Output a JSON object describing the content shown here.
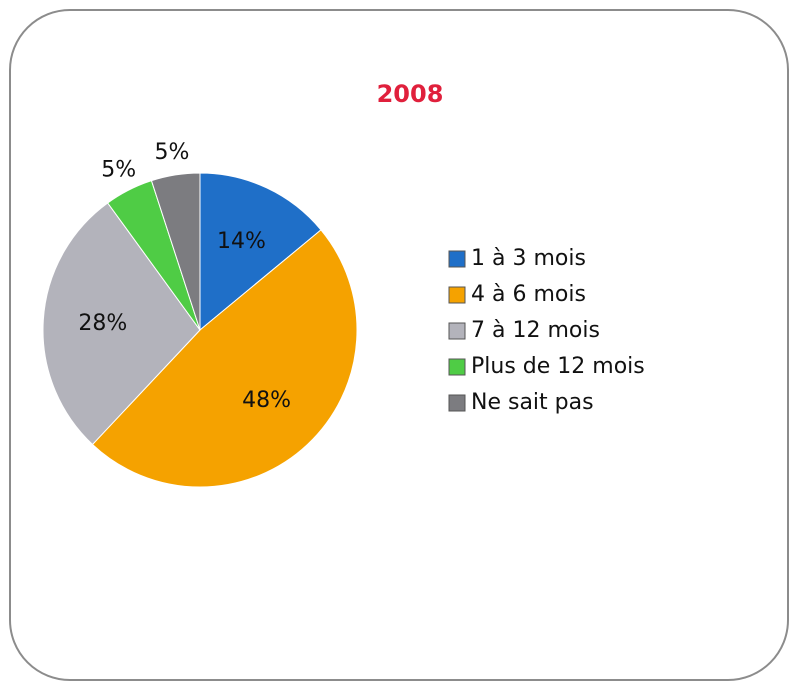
{
  "chart_data": {
    "type": "pie",
    "title": "2008",
    "categories": [
      "1 à 3 mois",
      "4 à 6 mois",
      "7 à 12 mois",
      "Plus de 12 mois",
      "Ne sait pas"
    ],
    "values": [
      14,
      48,
      28,
      5,
      5
    ],
    "value_labels": [
      "14%",
      "48%",
      "28%",
      "5%",
      "5%"
    ],
    "colors": [
      "#1f6fc8",
      "#f5a200",
      "#b3b3bb",
      "#4fcc45",
      "#7c7c80"
    ],
    "legend": "right"
  }
}
